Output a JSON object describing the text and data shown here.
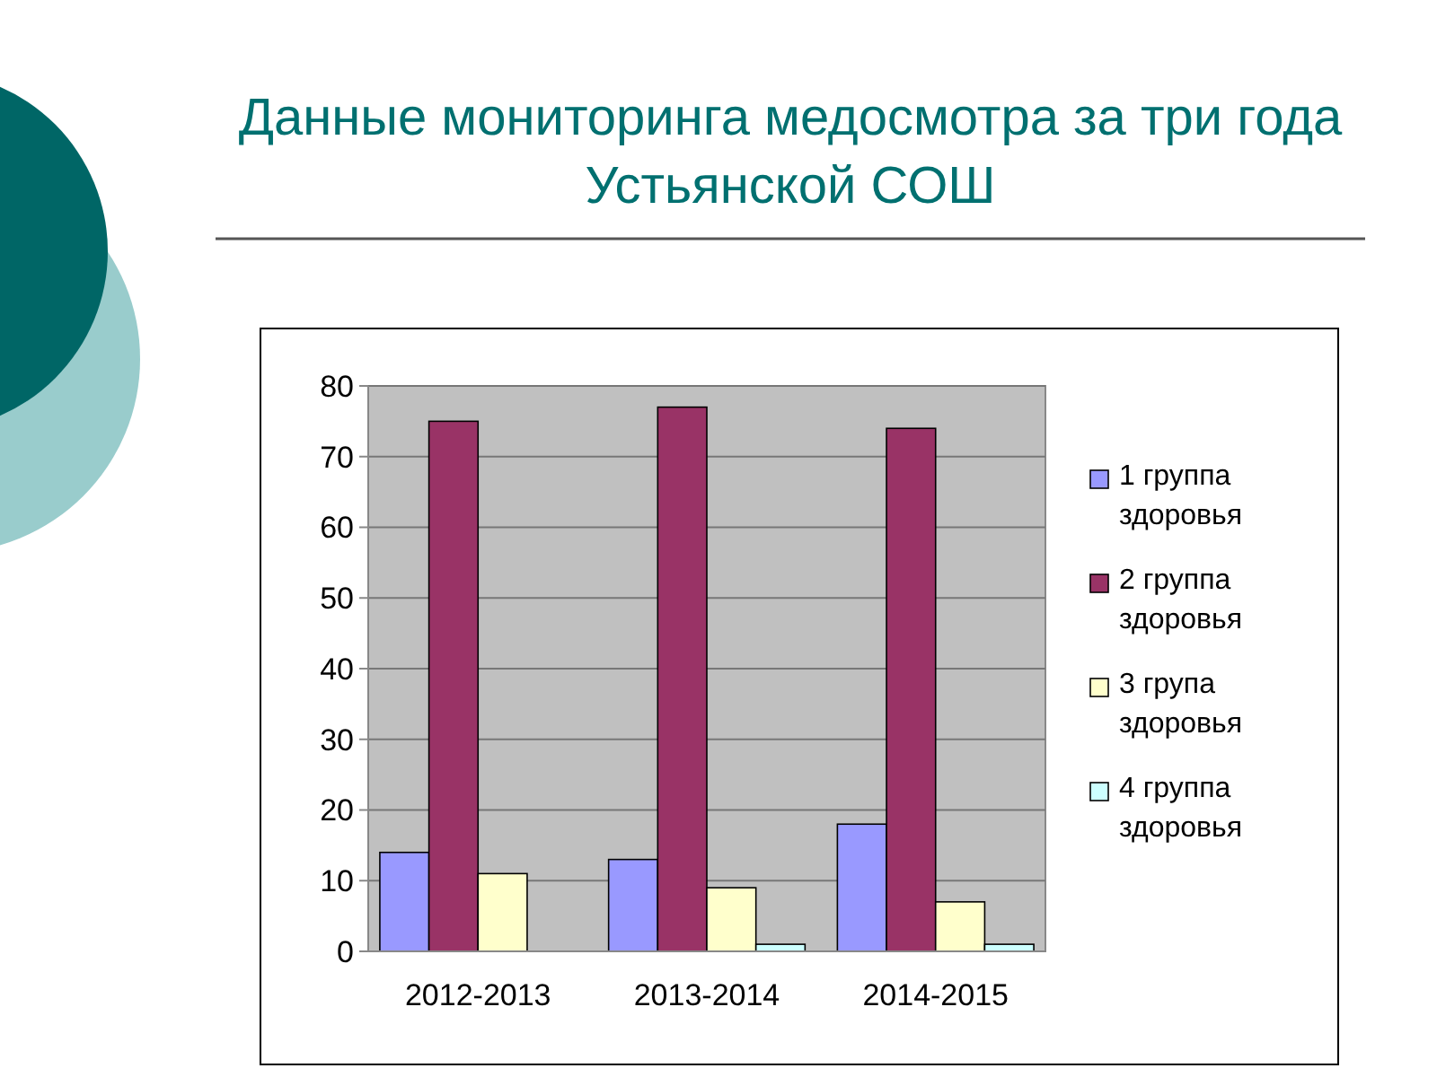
{
  "chart_data": {
    "type": "bar",
    "title": "Данные мониторинга медосмотра  за три года  Устьянской СОШ",
    "categories": [
      "2012-2013",
      "2013-2014",
      "2014-2015"
    ],
    "series": [
      {
        "name": "1 группа здоровья",
        "color": "#9999ff",
        "values": [
          14,
          13,
          18
        ]
      },
      {
        "name": "2 группа здоровья",
        "color": "#993366",
        "values": [
          75,
          77,
          74
        ]
      },
      {
        "name": "3 група здоровья",
        "color": "#ffffcc",
        "values": [
          11,
          9,
          7
        ]
      },
      {
        "name": "4 группа здоровья",
        "color": "#ccffff",
        "values": [
          null,
          1,
          1
        ]
      }
    ],
    "ylim": [
      0,
      80
    ],
    "yticks": [
      0,
      10,
      20,
      30,
      40,
      50,
      60,
      70,
      80
    ],
    "grid": "y",
    "legend": "right"
  }
}
